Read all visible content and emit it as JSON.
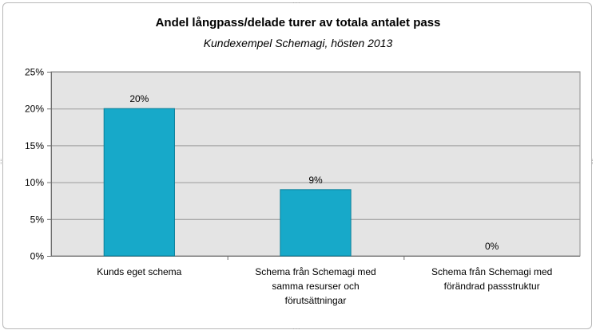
{
  "chart_data": {
    "type": "bar",
    "title": "Andel långpass/delade turer av totala antalet pass",
    "subtitle": "Kundexempel Schemagi, hösten 2013",
    "categories": [
      [
        "Kunds eget schema"
      ],
      [
        "Schema från Schemagi med",
        "samma resurser och",
        "förutsättningar"
      ],
      [
        "Schema från Schemagi med",
        "förändrad passstruktur"
      ]
    ],
    "values": [
      20,
      9,
      0
    ],
    "data_labels": [
      "20%",
      "9%",
      "0%"
    ],
    "ylim": [
      0,
      25
    ],
    "y_ticks": [
      0,
      5,
      10,
      15,
      20,
      25
    ],
    "y_tick_labels": [
      "0%",
      "5%",
      "10%",
      "15%",
      "20%",
      "25%"
    ],
    "grid": true,
    "legend": "none",
    "colors": {
      "bar": "#17A9C9",
      "bar_edge": "#0b7f99",
      "plot_bg": "#e4e4e4",
      "grid": "#9a9a9a"
    }
  }
}
